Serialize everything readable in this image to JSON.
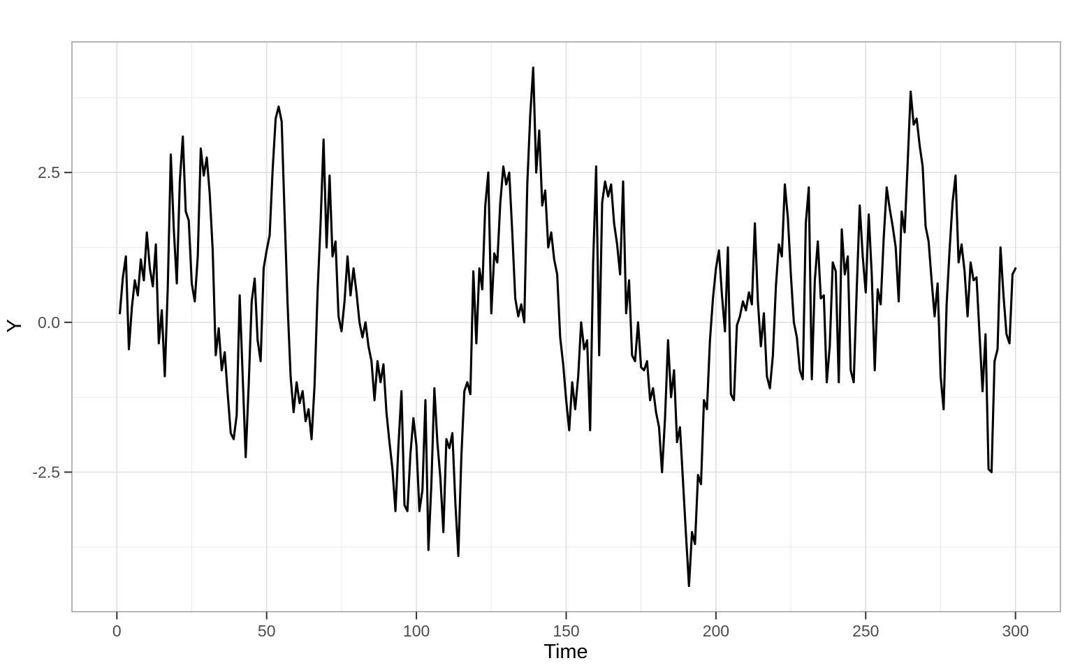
{
  "chart_data": {
    "type": "line",
    "title": "",
    "xlabel": "Time",
    "ylabel": "Y",
    "legend": "none",
    "grid": true,
    "background": "#ffffff",
    "xlim": [
      -15,
      315
    ],
    "ylim": [
      -4.83,
      4.68
    ],
    "x_ticks": {
      "values": [
        0,
        50,
        100,
        150,
        200,
        250,
        300
      ],
      "labels": [
        "0",
        "50",
        "100",
        "150",
        "200",
        "250",
        "300"
      ]
    },
    "y_ticks": {
      "values": [
        2.5,
        0,
        -2.5
      ],
      "labels": [
        "2.5",
        "0.0",
        "-2.5"
      ]
    },
    "x_minor": [
      25,
      75,
      125,
      175,
      225,
      275
    ],
    "y_minor": [
      3.75,
      1.25,
      -1.25,
      -3.75
    ],
    "colors": {
      "line": "#000000",
      "grid_major": "#e0e0e0",
      "grid_minor": "#ececec",
      "panel_border": "#979797",
      "tick": "#333333",
      "tick_label": "#4d4d4d",
      "axis_title": "#000000"
    },
    "series": [
      {
        "name": "Y",
        "color": "#000000",
        "x_start": 1,
        "x_step": 1,
        "values": [
          0.15,
          0.75,
          1.1,
          -0.45,
          0.25,
          0.7,
          0.45,
          1.05,
          0.7,
          1.5,
          0.9,
          0.6,
          1.3,
          -0.35,
          0.2,
          -0.9,
          0.6,
          2.8,
          1.55,
          0.65,
          2.35,
          3.1,
          1.85,
          1.7,
          0.65,
          0.35,
          1.1,
          2.9,
          2.45,
          2.75,
          2.15,
          1.2,
          -0.55,
          -0.1,
          -0.8,
          -0.5,
          -1.2,
          -1.85,
          -1.95,
          -1.55,
          0.45,
          -0.9,
          -2.25,
          -1.05,
          0.35,
          0.73,
          -0.3,
          -0.65,
          0.9,
          1.2,
          1.45,
          2.55,
          3.4,
          3.6,
          3.35,
          1.8,
          0.3,
          -0.9,
          -1.5,
          -1.0,
          -1.35,
          -1.15,
          -1.65,
          -1.45,
          -1.95,
          -1.05,
          0.5,
          1.65,
          3.05,
          1.25,
          2.45,
          1.1,
          1.35,
          0.1,
          -0.15,
          0.35,
          1.1,
          0.45,
          0.9,
          0.5,
          0.0,
          -0.25,
          0.0,
          -0.4,
          -0.65,
          -1.3,
          -0.65,
          -1.0,
          -0.7,
          -1.5,
          -2.0,
          -2.45,
          -3.15,
          -2.05,
          -1.15,
          -3.05,
          -3.15,
          -2.2,
          -1.6,
          -2.05,
          -3.15,
          -2.8,
          -1.3,
          -3.8,
          -2.7,
          -1.1,
          -2.0,
          -2.6,
          -3.5,
          -1.95,
          -2.1,
          -1.85,
          -3.0,
          -3.9,
          -2.25,
          -1.15,
          -1.0,
          -1.2,
          0.85,
          -0.35,
          0.9,
          0.55,
          1.95,
          2.5,
          0.15,
          1.15,
          1.0,
          2.0,
          2.6,
          2.3,
          2.5,
          1.5,
          0.4,
          0.1,
          0.3,
          0.0,
          2.3,
          3.45,
          4.25,
          2.5,
          3.2,
          1.95,
          2.2,
          1.25,
          1.5,
          1.05,
          0.8,
          -0.25,
          -0.7,
          -1.3,
          -1.8,
          -1.0,
          -1.45,
          -0.9,
          0.0,
          -0.45,
          -0.3,
          -1.8,
          1.0,
          2.6,
          -0.55,
          2.0,
          2.35,
          2.1,
          2.3,
          1.65,
          1.3,
          0.8,
          2.35,
          0.15,
          0.7,
          -0.55,
          -0.65,
          0.0,
          -0.75,
          -0.8,
          -0.65,
          -1.3,
          -1.1,
          -1.5,
          -1.75,
          -2.5,
          -1.6,
          -0.3,
          -1.25,
          -0.8,
          -2.0,
          -1.75,
          -2.65,
          -3.55,
          -4.4,
          -3.5,
          -3.7,
          -2.55,
          -2.7,
          -1.3,
          -1.45,
          -0.3,
          0.4,
          0.9,
          1.2,
          0.45,
          -0.15,
          1.25,
          -1.2,
          -1.3,
          -0.05,
          0.1,
          0.35,
          0.2,
          0.5,
          0.3,
          1.65,
          0.35,
          -0.4,
          0.15,
          -0.9,
          -1.1,
          -0.55,
          0.6,
          1.3,
          1.1,
          2.3,
          1.75,
          0.8,
          0.0,
          -0.25,
          -0.8,
          -0.95,
          1.65,
          2.25,
          -0.95,
          0.7,
          1.35,
          0.4,
          0.45,
          -1.0,
          -0.4,
          1.0,
          0.85,
          -1.0,
          1.55,
          0.8,
          1.1,
          -0.8,
          -1.0,
          0.55,
          1.95,
          1.1,
          0.5,
          1.8,
          0.8,
          -0.8,
          0.55,
          0.3,
          1.4,
          2.25,
          1.9,
          1.6,
          1.25,
          0.35,
          1.85,
          1.5,
          2.65,
          3.85,
          3.3,
          3.4,
          2.95,
          2.6,
          1.6,
          1.35,
          0.7,
          0.1,
          0.65,
          -0.9,
          -1.45,
          0.3,
          1.2,
          2.0,
          2.45,
          1.0,
          1.3,
          0.85,
          0.1,
          1.0,
          0.7,
          0.75,
          -0.2,
          -1.15,
          -0.2,
          -2.45,
          -2.5,
          -0.65,
          -0.45,
          1.25,
          0.45,
          -0.2,
          -0.35,
          0.8,
          0.9
        ]
      }
    ]
  }
}
